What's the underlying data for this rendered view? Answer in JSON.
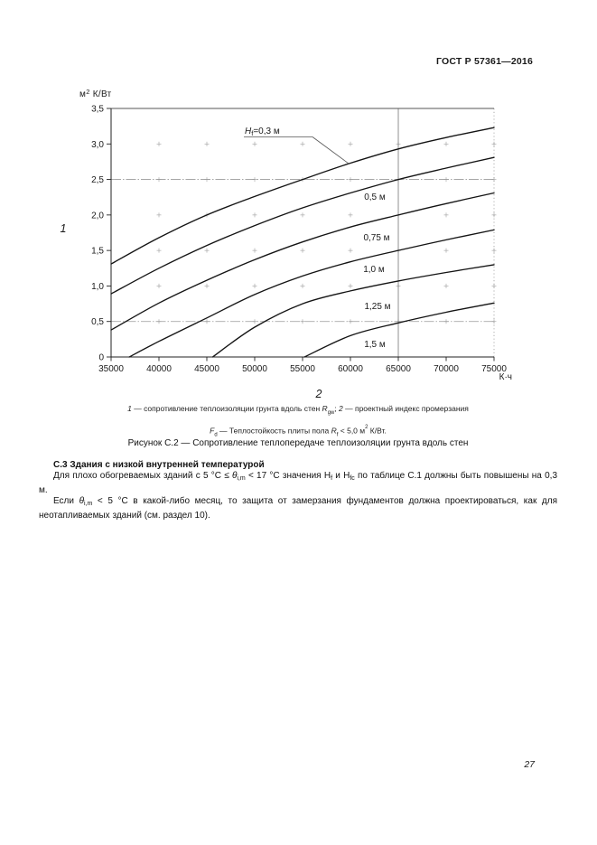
{
  "page": {
    "header": "ГОСТ Р 57361—2016",
    "page_number": "27"
  },
  "figure": {
    "note_line1_segments": [
      {
        "t": "1",
        "s": "i"
      },
      {
        "t": " — сопротивление теплоизоляции грунта вдоль стен "
      },
      {
        "t": "R",
        "s": "i"
      },
      {
        "t": "gw",
        "s": "sub"
      },
      {
        "t": "; "
      },
      {
        "t": "2",
        "s": "i"
      },
      {
        "t": " — проектный индекс промерзания"
      }
    ],
    "note_line2_segments": [
      {
        "t": "F",
        "s": "i"
      },
      {
        "t": "d",
        "s": "sub"
      },
      {
        "t": " — Теплостойкость плиты пола "
      },
      {
        "t": "R",
        "s": "i"
      },
      {
        "t": "f",
        "s": "sub"
      },
      {
        "t": " < 5,0 м"
      },
      {
        "t": "2",
        "s": "sup"
      },
      {
        "t": " К/Вт."
      }
    ],
    "caption": "Рисунок С.2 — Сопротивление теплопередаче теплоизоляции грунта вдоль стен"
  },
  "section": {
    "heading": "С.3 Здания с низкой внутренней температурой",
    "para1_segments": [
      {
        "t": "Для плохо обогреваемых зданий с 5 °С ≤ "
      },
      {
        "t": "θ",
        "s": "i"
      },
      {
        "t": "i,m",
        "s": "sub"
      },
      {
        "t": " < 17 °С значения H"
      },
      {
        "t": "f",
        "s": "sub"
      },
      {
        "t": " и H"
      },
      {
        "t": "fc",
        "s": "sub"
      },
      {
        "t": " по таблице С.1 должны быть повышены на 0,3 м."
      }
    ],
    "para2_segments": [
      {
        "t": "Если "
      },
      {
        "t": "θ",
        "s": "i"
      },
      {
        "t": "i,m",
        "s": "sub"
      },
      {
        "t": " < 5 °С в какой-либо месяц, то защита от замерзания фундаментов должна проектироваться, как для неотапливаемых зданий (см. раздел 10)."
      }
    ]
  },
  "chart_data": {
    "type": "line",
    "title": "",
    "xlabel": "К·ч",
    "ylabel": "м² К/Вт",
    "ylabel_segments": [
      {
        "t": "м"
      },
      {
        "t": "2",
        "s": "sup"
      },
      {
        "t": " К/Вт"
      }
    ],
    "xlim": [
      35000,
      75000
    ],
    "ylim": [
      0,
      3.5
    ],
    "x_ticks": [
      35000,
      40000,
      45000,
      50000,
      55000,
      60000,
      65000,
      70000,
      75000
    ],
    "x_tick_labels": [
      "35000",
      "40000",
      "45000",
      "50000",
      "55000",
      "60000",
      "65000",
      "70000",
      "75000"
    ],
    "y_ticks": [
      0,
      0.5,
      1,
      1.5,
      2,
      2.5,
      3,
      3.5
    ],
    "y_tick_labels": [
      "0",
      "0,5",
      "1,0",
      "1,5",
      "2,0",
      "2,5",
      "3,0",
      "3,5"
    ],
    "grid": "cross-markers at 5000 x 0,5 intersections",
    "reference_lines": {
      "horizontal": [
        2.5,
        0.5
      ],
      "vertical_solid": [
        65000
      ],
      "vertical_dotted": [
        75000
      ]
    },
    "axis_callouts": {
      "y": "1",
      "x": "2"
    },
    "series": [
      {
        "label": "Hf = 0,3 м",
        "label_segments": [
          {
            "t": "H",
            "s": "i"
          },
          {
            "t": "f",
            "s": "sub"
          },
          {
            "t": "=0,3 м"
          }
        ],
        "points": [
          [
            35000,
            1.31
          ],
          [
            40000,
            1.68
          ],
          [
            45000,
            2.0
          ],
          [
            50000,
            2.26
          ],
          [
            55000,
            2.5
          ],
          [
            60000,
            2.73
          ],
          [
            65000,
            2.93
          ],
          [
            70000,
            3.09
          ],
          [
            75000,
            3.23
          ]
        ]
      },
      {
        "label": "0,5 м",
        "points": [
          [
            35000,
            0.89
          ],
          [
            40000,
            1.25
          ],
          [
            45000,
            1.57
          ],
          [
            50000,
            1.85
          ],
          [
            55000,
            2.1
          ],
          [
            60000,
            2.31
          ],
          [
            65000,
            2.5
          ],
          [
            70000,
            2.66
          ],
          [
            75000,
            2.81
          ]
        ]
      },
      {
        "label": "0,75 м",
        "points": [
          [
            35000,
            0.38
          ],
          [
            40000,
            0.76
          ],
          [
            45000,
            1.08
          ],
          [
            50000,
            1.37
          ],
          [
            55000,
            1.62
          ],
          [
            60000,
            1.83
          ],
          [
            65000,
            2.0
          ],
          [
            70000,
            2.16
          ],
          [
            75000,
            2.31
          ]
        ]
      },
      {
        "label": "1,0 м",
        "points": [
          [
            36900,
            0
          ],
          [
            40000,
            0.22
          ],
          [
            45000,
            0.55
          ],
          [
            50000,
            0.88
          ],
          [
            55000,
            1.14
          ],
          [
            60000,
            1.34
          ],
          [
            65000,
            1.5
          ],
          [
            70000,
            1.65
          ],
          [
            75000,
            1.79
          ]
        ]
      },
      {
        "label": "1,25 м",
        "points": [
          [
            45600,
            0
          ],
          [
            50000,
            0.42
          ],
          [
            55000,
            0.75
          ],
          [
            60000,
            0.93
          ],
          [
            65000,
            1.07
          ],
          [
            70000,
            1.19
          ],
          [
            75000,
            1.3
          ]
        ]
      },
      {
        "label": "1,5 м",
        "points": [
          [
            55200,
            0
          ],
          [
            60000,
            0.3
          ],
          [
            65000,
            0.48
          ],
          [
            70000,
            0.63
          ],
          [
            75000,
            0.76
          ]
        ]
      }
    ],
    "legend_position": "labels next to curves"
  }
}
